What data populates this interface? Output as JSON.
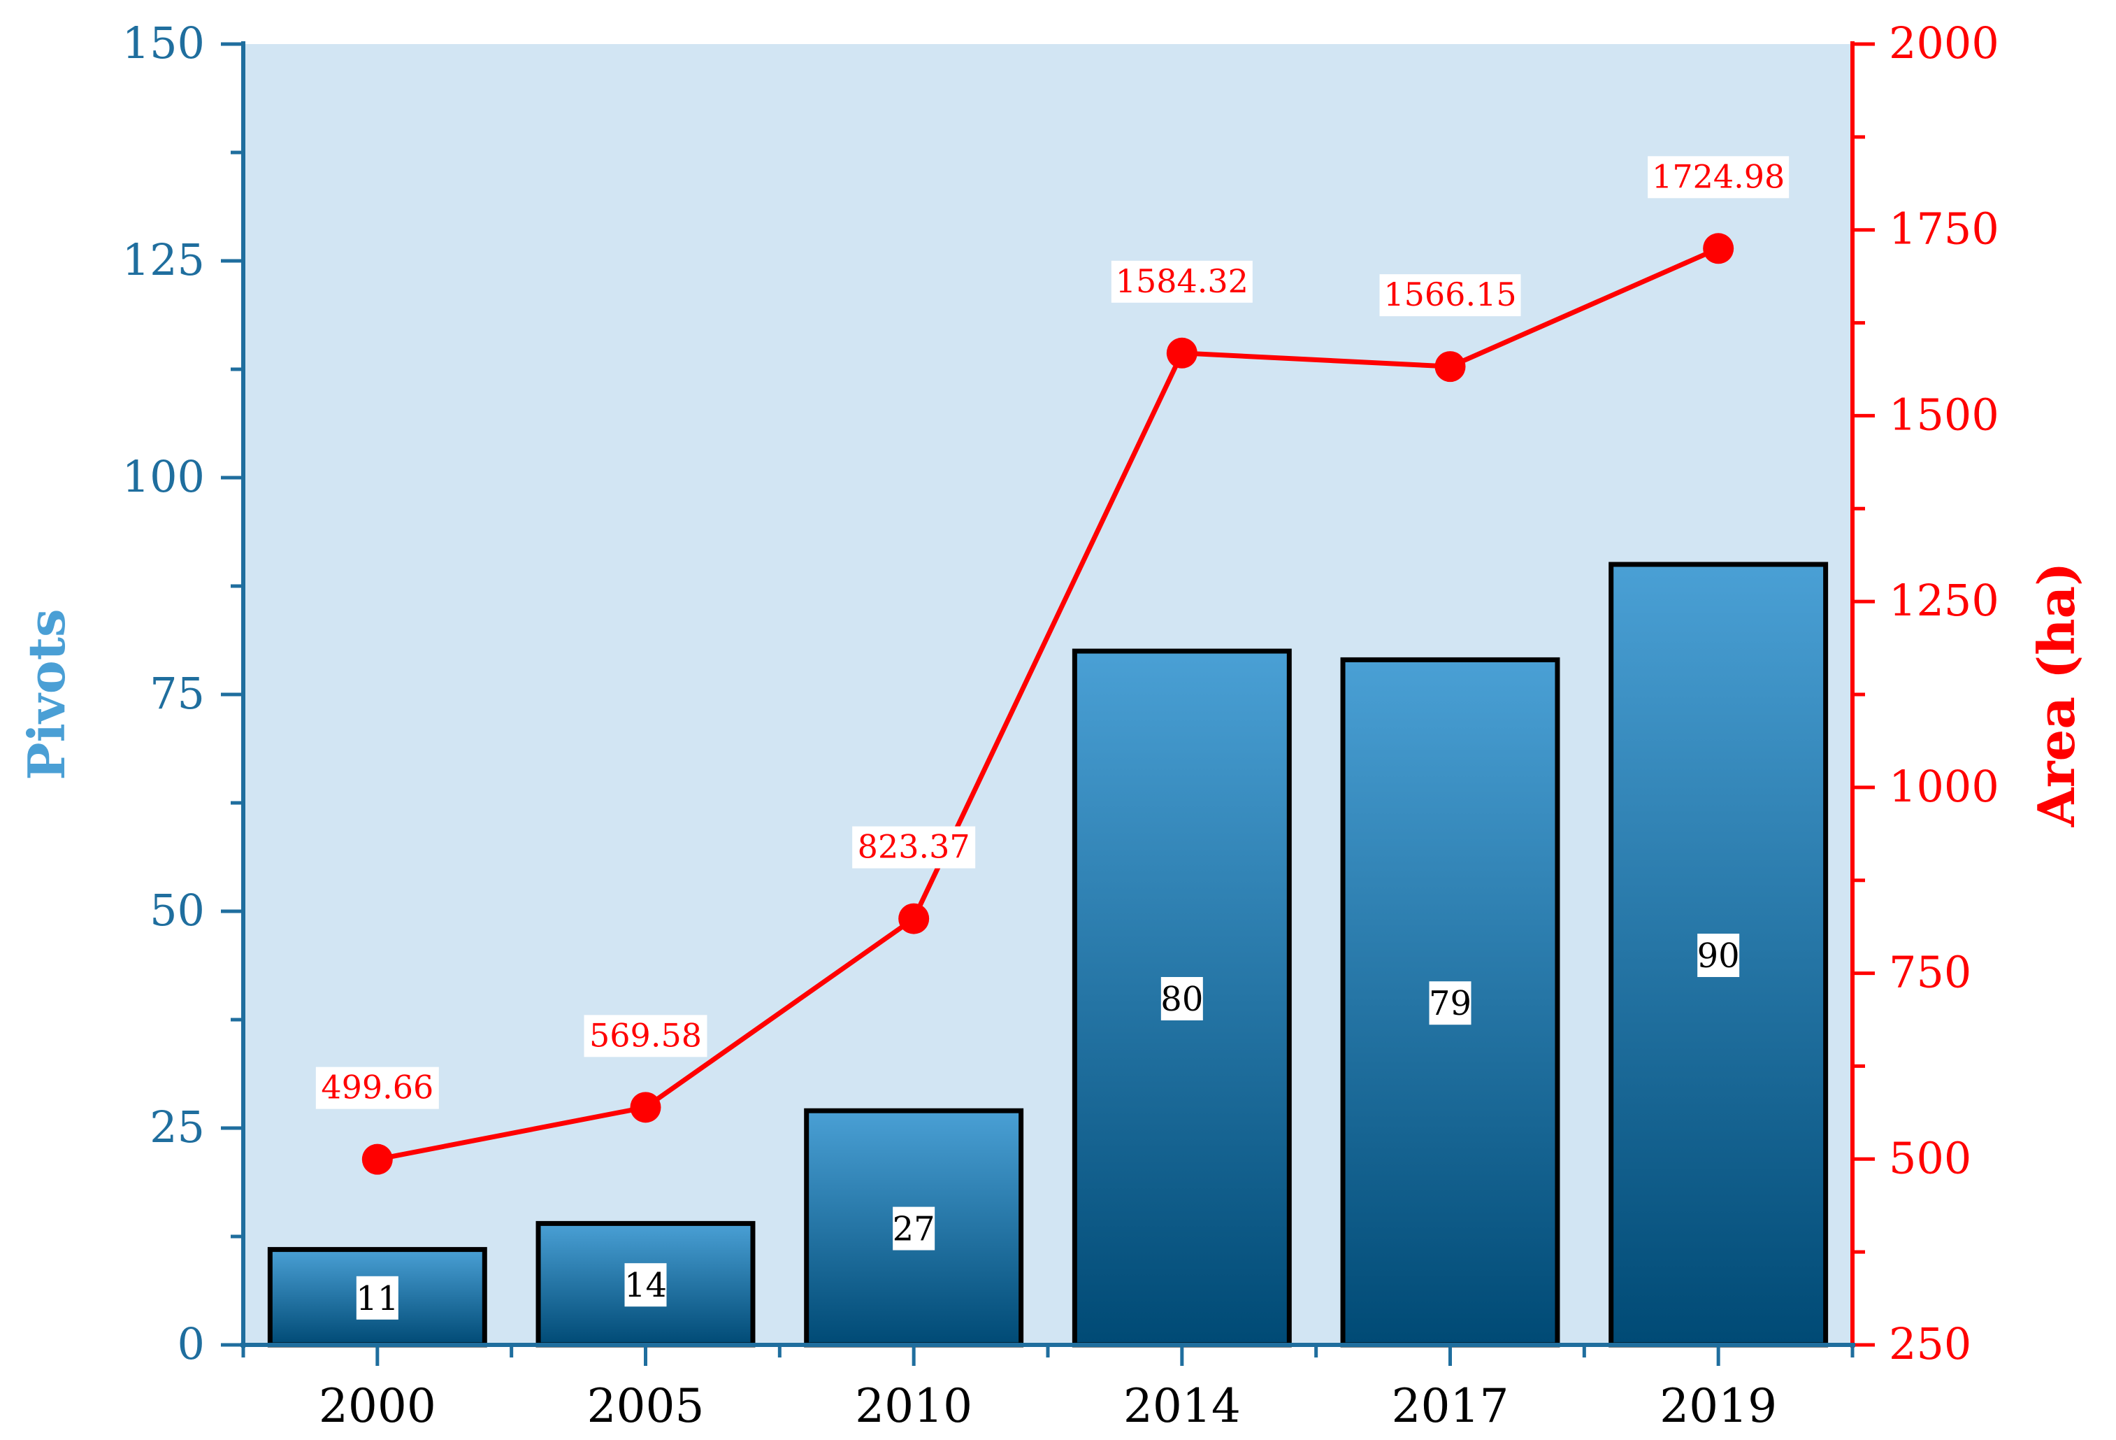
{
  "chart_data": {
    "type": "bar+line",
    "categories": [
      "2000",
      "2005",
      "2010",
      "2014",
      "2017",
      "2019"
    ],
    "series": [
      {
        "name": "Pivots",
        "type": "bar",
        "axis": "left",
        "values": [
          11,
          14,
          27,
          80,
          79,
          90
        ],
        "labels": [
          "11",
          "14",
          "27",
          "80",
          "79",
          "90"
        ]
      },
      {
        "name": "Area (ha)",
        "type": "line",
        "axis": "right",
        "values": [
          499.66,
          569.58,
          823.37,
          1584.32,
          1566.15,
          1724.98
        ],
        "labels": [
          "499.66",
          "569.58",
          "823.37",
          "1584.32",
          "1566.15",
          "1724.98"
        ]
      }
    ],
    "ylabel": "Pivots",
    "y2label": "Area (ha)",
    "ylim": [
      0,
      150
    ],
    "y2lim": [
      250,
      2000
    ],
    "yticks": [
      "0",
      "25",
      "50",
      "75",
      "100",
      "125",
      "150"
    ],
    "y2ticks": [
      "250",
      "500",
      "750",
      "1000",
      "1250",
      "1500",
      "1750",
      "2000"
    ],
    "grid": false,
    "colors": {
      "plot_background": "#d2e5f3",
      "bar_top": "#4aa0d5",
      "bar_bottom": "#004a75",
      "left_axis": "#1f6e9e",
      "left_label": "#4a9fd5",
      "line": "#ff0000"
    }
  }
}
